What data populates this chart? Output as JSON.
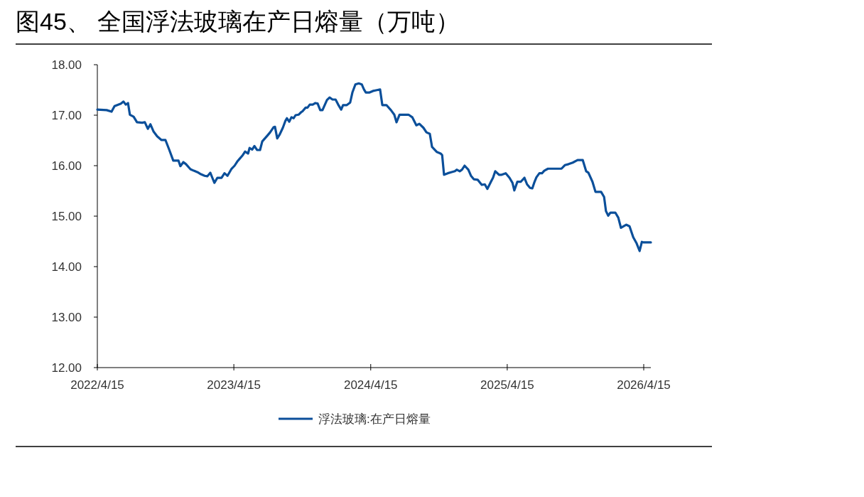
{
  "chart_data": {
    "type": "line",
    "title": "图45、 全国浮法玻璃在产日熔量（万吨）",
    "xlim": [
      "2022-04-15",
      "2026-05-04"
    ],
    "xticks": [
      {
        "value": "2022-04-15",
        "label": "2022/4/15"
      },
      {
        "value": "2023-04-15",
        "label": "2023/4/15"
      },
      {
        "value": "2024-04-15",
        "label": "2024/4/15"
      },
      {
        "value": "2025-04-15",
        "label": "2025/4/15"
      },
      {
        "value": "2026-04-15",
        "label": "2026/4/15"
      }
    ],
    "ylim": [
      12,
      18
    ],
    "yticks": [
      {
        "value": 12,
        "label": "12.00"
      },
      {
        "value": 13,
        "label": "13.00"
      },
      {
        "value": 14,
        "label": "14.00"
      },
      {
        "value": 15,
        "label": "15.00"
      },
      {
        "value": 16,
        "label": "16.00"
      },
      {
        "value": 17,
        "label": "17.00"
      },
      {
        "value": 18,
        "label": "18.00"
      }
    ],
    "grid": false,
    "legend": "bottom",
    "marker": "none",
    "line_style": "solid",
    "x": [
      "2022-04-15",
      "2022-05-10",
      "2022-05-23",
      "2022-05-31",
      "2022-06-17",
      "2022-06-24",
      "2022-06-30",
      "2022-07-06",
      "2022-07-11",
      "2022-07-21",
      "2022-07-30",
      "2022-08-13",
      "2022-08-20",
      "2022-08-28",
      "2022-09-04",
      "2022-09-12",
      "2022-09-22",
      "2022-10-03",
      "2022-10-14",
      "2022-10-24",
      "2022-11-04",
      "2022-11-18",
      "2022-11-23",
      "2022-12-01",
      "2022-12-08",
      "2022-12-20",
      "2022-12-29",
      "2023-01-08",
      "2023-01-17",
      "2023-01-27",
      "2023-02-03",
      "2023-02-11",
      "2023-02-17",
      "2023-02-22",
      "2023-03-02",
      "2023-03-13",
      "2023-03-21",
      "2023-03-29",
      "2023-04-09",
      "2023-04-17",
      "2023-04-24",
      "2023-05-02",
      "2023-05-08",
      "2023-05-15",
      "2023-05-23",
      "2023-05-27",
      "2023-06-03",
      "2023-06-09",
      "2023-06-16",
      "2023-06-24",
      "2023-06-30",
      "2023-07-13",
      "2023-07-21",
      "2023-07-30",
      "2023-08-03",
      "2023-08-09",
      "2023-08-15",
      "2023-08-24",
      "2023-08-31",
      "2023-09-04",
      "2023-09-10",
      "2023-09-16",
      "2023-09-22",
      "2023-09-27",
      "2023-10-05",
      "2023-10-12",
      "2023-10-16",
      "2023-10-24",
      "2023-10-29",
      "2023-11-04",
      "2023-11-12",
      "2023-11-19",
      "2023-11-25",
      "2023-12-02",
      "2023-12-08",
      "2023-12-20",
      "2023-12-27",
      "2024-01-04",
      "2024-01-12",
      "2024-01-19",
      "2024-01-27",
      "2024-02-01",
      "2024-02-11",
      "2024-02-20",
      "2024-02-26",
      "2024-03-05",
      "2024-03-14",
      "2024-03-22",
      "2024-03-28",
      "2024-04-02",
      "2024-04-12",
      "2024-04-21",
      "2024-04-27",
      "2024-05-10",
      "2024-05-16",
      "2024-05-27",
      "2024-06-08",
      "2024-06-17",
      "2024-06-23",
      "2024-07-01",
      "2024-07-16",
      "2024-07-25",
      "2024-08-04",
      "2024-08-15",
      "2024-08-23",
      "2024-09-03",
      "2024-09-11",
      "2024-09-20",
      "2024-09-26",
      "2024-10-09",
      "2024-10-19",
      "2024-10-23",
      "2024-10-28",
      "2024-11-07",
      "2024-11-16",
      "2024-11-26",
      "2024-12-01",
      "2024-12-09",
      "2024-12-15",
      "2024-12-22",
      "2025-01-01",
      "2025-01-08",
      "2025-01-16",
      "2025-01-26",
      "2025-02-06",
      "2025-02-14",
      "2025-02-21",
      "2025-03-03",
      "2025-03-08",
      "2025-03-14",
      "2025-03-24",
      "2025-03-31",
      "2025-04-11",
      "2025-04-21",
      "2025-04-29",
      "2025-05-04",
      "2025-05-12",
      "2025-05-21",
      "2025-05-31",
      "2025-06-07",
      "2025-06-15",
      "2025-06-21",
      "2025-06-26",
      "2025-07-02",
      "2025-07-10",
      "2025-07-17",
      "2025-07-23",
      "2025-08-02",
      "2025-08-19",
      "2025-09-07",
      "2025-09-16",
      "2025-09-26",
      "2025-10-07",
      "2025-10-20",
      "2025-11-03",
      "2025-11-12",
      "2025-11-18",
      "2025-11-29",
      "2025-12-07",
      "2025-12-22",
      "2025-12-30",
      "2026-01-04",
      "2026-01-10",
      "2026-01-16",
      "2026-01-29",
      "2026-02-06",
      "2026-02-13",
      "2026-02-27",
      "2026-03-08",
      "2026-03-18",
      "2026-03-27",
      "2026-04-04",
      "2026-04-10",
      "2026-04-15",
      "2026-05-04"
    ],
    "series": [
      {
        "name": "浮法玻璃:在产日熔量",
        "color": "#0b4f9a",
        "values": [
          17.11,
          17.1,
          17.07,
          17.18,
          17.23,
          17.27,
          17.21,
          17.24,
          17.01,
          16.97,
          16.86,
          16.85,
          16.86,
          16.73,
          16.82,
          16.68,
          16.58,
          16.51,
          16.51,
          16.32,
          16.1,
          16.1,
          15.99,
          16.07,
          16.03,
          15.93,
          15.9,
          15.87,
          15.83,
          15.8,
          15.79,
          15.86,
          15.75,
          15.66,
          15.76,
          15.76,
          15.85,
          15.8,
          15.94,
          16.0,
          16.08,
          16.15,
          16.2,
          16.28,
          16.24,
          16.35,
          16.32,
          16.39,
          16.31,
          16.31,
          16.48,
          16.59,
          16.66,
          16.76,
          16.77,
          16.54,
          16.61,
          16.75,
          16.89,
          16.94,
          16.87,
          16.96,
          16.94,
          17.0,
          17.01,
          17.06,
          17.08,
          17.15,
          17.15,
          17.21,
          17.21,
          17.24,
          17.23,
          17.1,
          17.1,
          17.3,
          17.35,
          17.31,
          17.31,
          17.21,
          17.11,
          17.2,
          17.2,
          17.25,
          17.45,
          17.61,
          17.63,
          17.61,
          17.51,
          17.45,
          17.45,
          17.48,
          17.49,
          17.51,
          17.2,
          17.2,
          17.1,
          17.01,
          16.86,
          17.01,
          17.01,
          17.01,
          16.96,
          16.8,
          16.83,
          16.75,
          16.66,
          16.63,
          16.37,
          16.27,
          16.24,
          16.21,
          15.82,
          15.85,
          15.87,
          15.89,
          15.92,
          15.89,
          15.92,
          16.0,
          15.92,
          15.8,
          15.73,
          15.72,
          15.62,
          15.63,
          15.54,
          15.69,
          15.76,
          15.89,
          15.82,
          15.82,
          15.85,
          15.76,
          15.66,
          15.51,
          15.68,
          15.68,
          15.76,
          15.63,
          15.56,
          15.55,
          15.66,
          15.77,
          15.85,
          15.85,
          15.9,
          15.94,
          15.94,
          15.94,
          16.01,
          16.03,
          16.06,
          16.11,
          16.11,
          15.89,
          15.86,
          15.68,
          15.48,
          15.48,
          15.38,
          15.1,
          15.01,
          15.07,
          15.07,
          14.97,
          14.77,
          14.83,
          14.8,
          14.58,
          14.46,
          14.31,
          14.49,
          14.48,
          14.48
        ]
      }
    ]
  }
}
